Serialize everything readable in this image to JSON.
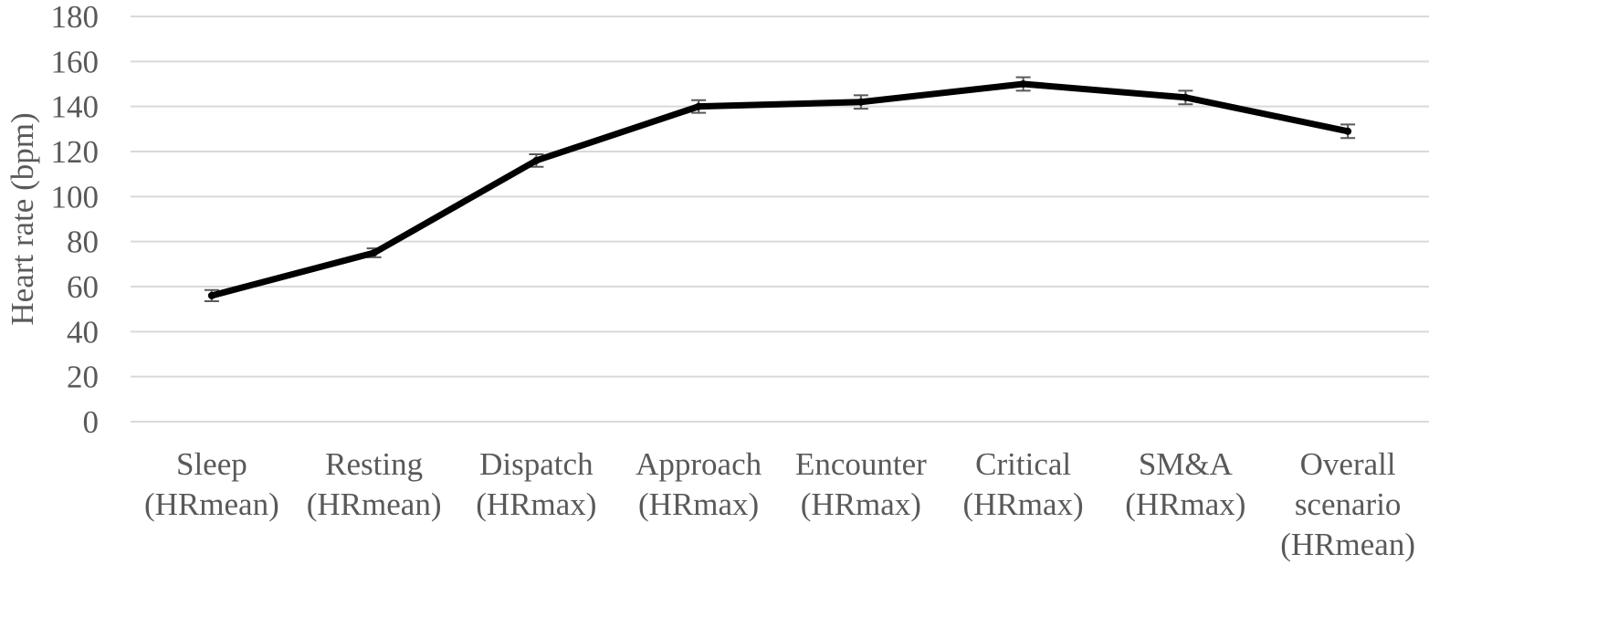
{
  "chart_data": {
    "type": "line",
    "title": "",
    "xlabel": "",
    "ylabel": "Heart rate (bpm)",
    "ylim": [
      0,
      180
    ],
    "yticks": [
      0,
      20,
      40,
      60,
      80,
      100,
      120,
      140,
      160,
      180
    ],
    "grid": true,
    "legend": "none",
    "line_color": "#000000",
    "grid_color": "#d9d9d9",
    "error_bar_color": "#595959",
    "categories": [
      [
        "Sleep",
        "(HRmean)"
      ],
      [
        "Resting",
        "(HRmean)"
      ],
      [
        "Dispatch",
        "(HRmax)"
      ],
      [
        "Approach",
        "(HRmax)"
      ],
      [
        "Encounter",
        "(HRmax)"
      ],
      [
        "Critical",
        "(HRmax)"
      ],
      [
        "SM&A",
        "(HRmax)"
      ],
      [
        "Overall",
        "scenario",
        "(HRmean)"
      ]
    ],
    "series": [
      {
        "values": [
          56,
          75,
          116,
          140,
          142,
          150,
          144,
          129
        ],
        "error": [
          2.5,
          2,
          2.8,
          2.8,
          3,
          3,
          3,
          3
        ]
      }
    ]
  }
}
